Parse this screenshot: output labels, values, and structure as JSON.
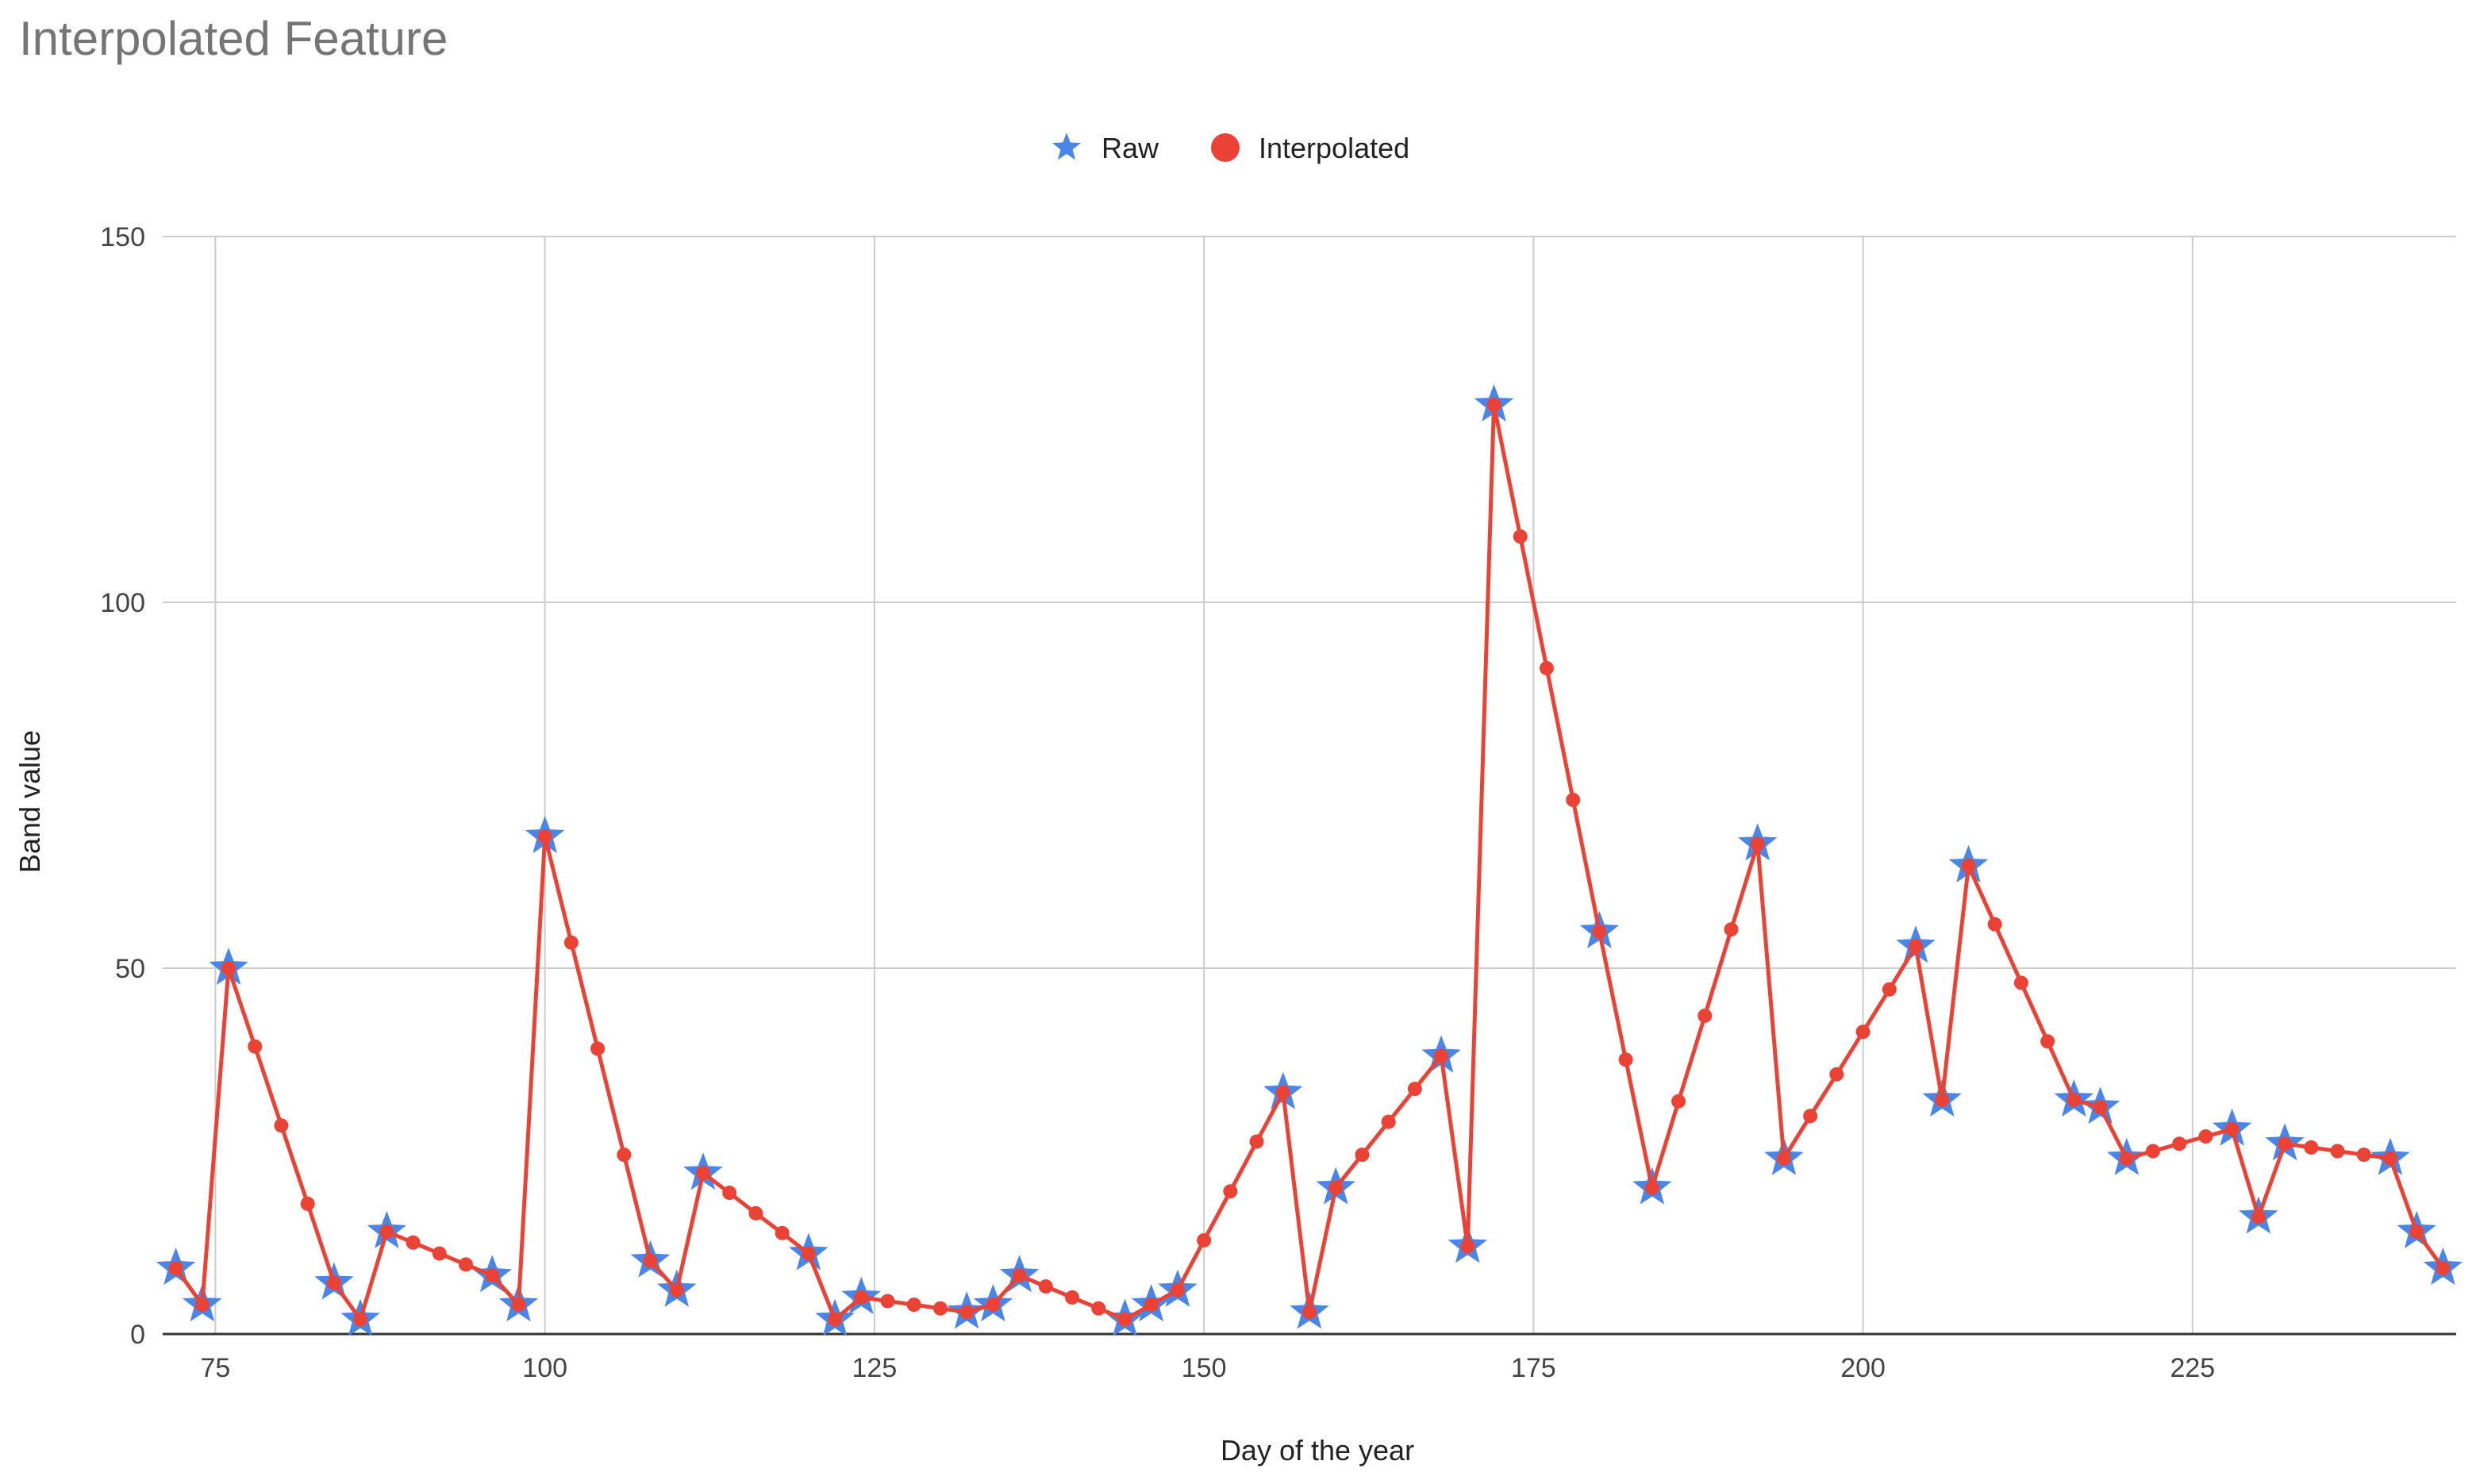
{
  "chart_data": {
    "type": "line",
    "title": "Interpolated Feature",
    "xlabel": "Day of the year",
    "ylabel": "Band value",
    "xlim": [
      71,
      245
    ],
    "ylim": [
      0,
      150
    ],
    "x_ticks": [
      75,
      100,
      125,
      150,
      175,
      200,
      225
    ],
    "y_ticks": [
      0,
      50,
      100,
      150
    ],
    "grid": true,
    "legend_position": "top-center",
    "series": [
      {
        "name": "Raw",
        "marker": "star",
        "color": "#4a86e8",
        "line": false,
        "points": [
          [
            72,
            9
          ],
          [
            74,
            4
          ],
          [
            76,
            50
          ],
          [
            84,
            7
          ],
          [
            86,
            2
          ],
          [
            88,
            14
          ],
          [
            96,
            8
          ],
          [
            98,
            4
          ],
          [
            100,
            68
          ],
          [
            108,
            10
          ],
          [
            110,
            6
          ],
          [
            112,
            22
          ],
          [
            120,
            11
          ],
          [
            122,
            2
          ],
          [
            124,
            5
          ],
          [
            132,
            3
          ],
          [
            134,
            4
          ],
          [
            136,
            8
          ],
          [
            144,
            2
          ],
          [
            146,
            4
          ],
          [
            148,
            6
          ],
          [
            156,
            33
          ],
          [
            158,
            3
          ],
          [
            160,
            20
          ],
          [
            168,
            38
          ],
          [
            170,
            12
          ],
          [
            172,
            127
          ],
          [
            180,
            55
          ],
          [
            184,
            20
          ],
          [
            192,
            67
          ],
          [
            194,
            24
          ],
          [
            204,
            53
          ],
          [
            206,
            32
          ],
          [
            208,
            64
          ],
          [
            216,
            32
          ],
          [
            218,
            31
          ],
          [
            220,
            24
          ],
          [
            228,
            28
          ],
          [
            230,
            16
          ],
          [
            232,
            26
          ],
          [
            240,
            24
          ],
          [
            242,
            14
          ],
          [
            244,
            9
          ]
        ]
      },
      {
        "name": "Interpolated",
        "marker": "circle",
        "color": "#ea4335",
        "line": true,
        "points": [
          [
            72,
            9
          ],
          [
            74,
            4
          ],
          [
            76,
            50
          ],
          [
            78,
            39.3
          ],
          [
            80,
            28.5
          ],
          [
            82,
            17.8
          ],
          [
            84,
            7
          ],
          [
            86,
            2
          ],
          [
            88,
            14
          ],
          [
            90,
            12.5
          ],
          [
            92,
            11
          ],
          [
            94,
            9.5
          ],
          [
            96,
            8
          ],
          [
            98,
            4
          ],
          [
            100,
            68
          ],
          [
            102,
            53.5
          ],
          [
            104,
            39
          ],
          [
            106,
            24.5
          ],
          [
            108,
            10
          ],
          [
            110,
            6
          ],
          [
            112,
            22
          ],
          [
            114,
            19.3
          ],
          [
            116,
            16.5
          ],
          [
            118,
            13.8
          ],
          [
            120,
            11
          ],
          [
            122,
            2
          ],
          [
            124,
            5
          ],
          [
            126,
            4.5
          ],
          [
            128,
            4
          ],
          [
            130,
            3.5
          ],
          [
            132,
            3
          ],
          [
            134,
            4
          ],
          [
            136,
            8
          ],
          [
            138,
            6.5
          ],
          [
            140,
            5
          ],
          [
            142,
            3.5
          ],
          [
            144,
            2
          ],
          [
            146,
            4
          ],
          [
            148,
            6
          ],
          [
            150,
            12.8
          ],
          [
            152,
            19.5
          ],
          [
            154,
            26.3
          ],
          [
            156,
            33
          ],
          [
            158,
            3
          ],
          [
            160,
            20
          ],
          [
            162,
            24.5
          ],
          [
            164,
            29
          ],
          [
            166,
            33.5
          ],
          [
            168,
            38
          ],
          [
            170,
            12
          ],
          [
            172,
            127
          ],
          [
            174,
            109
          ],
          [
            176,
            91
          ],
          [
            178,
            73
          ],
          [
            180,
            55
          ],
          [
            182,
            37.5
          ],
          [
            184,
            20
          ],
          [
            186,
            31.8
          ],
          [
            188,
            43.5
          ],
          [
            190,
            55.3
          ],
          [
            192,
            67
          ],
          [
            194,
            24
          ],
          [
            196,
            29.8
          ],
          [
            198,
            35.5
          ],
          [
            200,
            41.3
          ],
          [
            202,
            47.1
          ],
          [
            204,
            53
          ],
          [
            206,
            32
          ],
          [
            208,
            64
          ],
          [
            210,
            56
          ],
          [
            212,
            48
          ],
          [
            214,
            40
          ],
          [
            216,
            32
          ],
          [
            218,
            31
          ],
          [
            220,
            24
          ],
          [
            222,
            25
          ],
          [
            224,
            26
          ],
          [
            226,
            27
          ],
          [
            228,
            28
          ],
          [
            230,
            16
          ],
          [
            232,
            26
          ],
          [
            234,
            25.5
          ],
          [
            236,
            25
          ],
          [
            238,
            24.5
          ],
          [
            240,
            24
          ],
          [
            242,
            14
          ],
          [
            244,
            9
          ]
        ]
      }
    ]
  }
}
